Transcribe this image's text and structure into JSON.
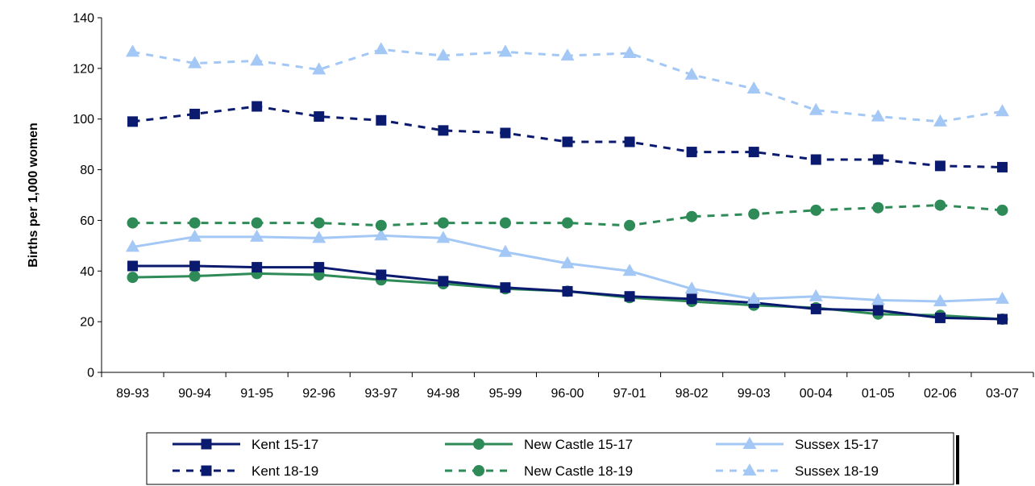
{
  "chart_data": {
    "type": "line",
    "title": "",
    "xlabel": "",
    "ylabel": "Births per 1,000 women",
    "ylim": [
      0,
      140
    ],
    "yticks": [
      "0",
      "20",
      "40",
      "60",
      "80",
      "100",
      "120",
      "140"
    ],
    "grid": false,
    "legend_position": "bottom",
    "categories": [
      "89-93",
      "90-94",
      "91-95",
      "92-96",
      "93-97",
      "94-98",
      "95-99",
      "96-00",
      "97-01",
      "98-02",
      "99-03",
      "00-04",
      "01-05",
      "02-06",
      "03-07"
    ],
    "series": [
      {
        "name": "Kent 15-17",
        "color": "#0a1a6e",
        "marker": "square",
        "dash": "solid",
        "values": [
          42,
          42,
          41.5,
          41.5,
          38.5,
          36,
          33.5,
          32,
          30,
          29,
          27.5,
          25,
          24.5,
          21.5,
          21
        ]
      },
      {
        "name": "New Castle 15-17",
        "color": "#2e8b57",
        "marker": "circle",
        "dash": "solid",
        "values": [
          37.5,
          38,
          39,
          38.5,
          36.5,
          35,
          33,
          32,
          29.5,
          28,
          26.5,
          25.5,
          23,
          22.5,
          21
        ]
      },
      {
        "name": "Sussex 15-17",
        "color": "#a4c8f5",
        "marker": "triangle",
        "dash": "solid",
        "values": [
          49.5,
          53.5,
          53.5,
          53,
          54,
          53,
          47.5,
          43,
          40,
          33,
          29,
          30,
          28.5,
          28,
          29
        ]
      },
      {
        "name": "Kent 18-19",
        "color": "#0a1a6e",
        "marker": "square",
        "dash": "dashed",
        "values": [
          99,
          102,
          105,
          101,
          99.5,
          95.5,
          94.5,
          91,
          91,
          87,
          87,
          84,
          84,
          81.5,
          81
        ]
      },
      {
        "name": "New Castle 18-19",
        "color": "#2e8b57",
        "marker": "circle",
        "dash": "dashed",
        "values": [
          59,
          59,
          59,
          59,
          58,
          59,
          59,
          59,
          58,
          61.5,
          62.5,
          64,
          65,
          66,
          64
        ]
      },
      {
        "name": "Sussex 18-19",
        "color": "#a4c8f5",
        "marker": "triangle",
        "dash": "dashed",
        "values": [
          126.5,
          122,
          123,
          119.5,
          127.5,
          125,
          126.5,
          125,
          126,
          117.5,
          112,
          103.5,
          101,
          99,
          103
        ]
      }
    ]
  }
}
